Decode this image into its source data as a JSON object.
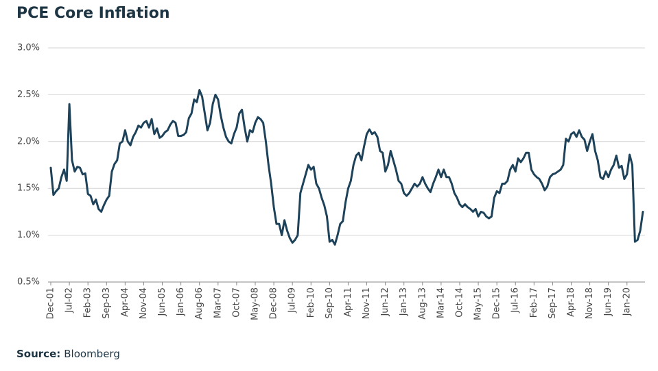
{
  "chart_data": {
    "type": "line",
    "title": "PCE Core Inflation",
    "source_label": "Source:",
    "source": "Bloomberg",
    "ylim": [
      0.5,
      3.0
    ],
    "yticks": [
      {
        "value": 0.5,
        "label": "0.5%"
      },
      {
        "value": 1.0,
        "label": "1.0%"
      },
      {
        "value": 1.5,
        "label": "1.5%"
      },
      {
        "value": 2.0,
        "label": "2.0%"
      },
      {
        "value": 2.5,
        "label": "2.5%"
      },
      {
        "value": 3.0,
        "label": "3.0%"
      }
    ],
    "grid": true,
    "categories": [
      "Dec-01",
      null,
      null,
      null,
      null,
      null,
      null,
      "Jul-02",
      null,
      null,
      null,
      null,
      null,
      null,
      "Feb-03",
      null,
      null,
      null,
      null,
      null,
      null,
      "Sep-03",
      null,
      null,
      null,
      null,
      null,
      null,
      "Apr-04",
      null,
      null,
      null,
      null,
      null,
      null,
      "Nov-04",
      null,
      null,
      null,
      null,
      null,
      null,
      "Jun-05",
      null,
      null,
      null,
      null,
      null,
      null,
      "Jan-06",
      null,
      null,
      null,
      null,
      null,
      null,
      "Aug-06",
      null,
      null,
      null,
      null,
      null,
      null,
      "Mar-07",
      null,
      null,
      null,
      null,
      null,
      null,
      "Oct-07",
      null,
      null,
      null,
      null,
      null,
      null,
      "May-08",
      null,
      null,
      null,
      null,
      null,
      null,
      "Dec-08",
      null,
      null,
      null,
      null,
      null,
      null,
      "Jul-09",
      null,
      null,
      null,
      null,
      null,
      null,
      "Feb-10",
      null,
      null,
      null,
      null,
      null,
      null,
      "Sep-10",
      null,
      null,
      null,
      null,
      null,
      null,
      "Apr-11",
      null,
      null,
      null,
      null,
      null,
      null,
      "Nov-11",
      null,
      null,
      null,
      null,
      null,
      null,
      "Jun-12",
      null,
      null,
      null,
      null,
      null,
      null,
      "Jan-13",
      null,
      null,
      null,
      null,
      null,
      null,
      "Aug-13",
      null,
      null,
      null,
      null,
      null,
      null,
      "Mar-14",
      null,
      null,
      null,
      null,
      null,
      null,
      "Oct-14",
      null,
      null,
      null,
      null,
      null,
      null,
      "May-15",
      null,
      null,
      null,
      null,
      null,
      null,
      "Dec-15",
      null,
      null,
      null,
      null,
      null,
      null,
      "Jul-16",
      null,
      null,
      null,
      null,
      null,
      null,
      "Feb-17",
      null,
      null,
      null,
      null,
      null,
      null,
      "Sep-17",
      null,
      null,
      null,
      null,
      null,
      null,
      "Apr-18",
      null,
      null,
      null,
      null,
      null,
      null,
      "Nov-18",
      null,
      null,
      null,
      null,
      null,
      null,
      "Jun-19",
      null,
      null,
      null,
      null,
      null,
      null,
      "Jan-20",
      null,
      null,
      null,
      null,
      null,
      null
    ],
    "series": [
      {
        "name": "PCE Core Inflation",
        "color": "#1d4259",
        "values": [
          1.72,
          1.43,
          1.47,
          1.5,
          1.62,
          1.7,
          1.58,
          2.4,
          1.8,
          1.68,
          1.73,
          1.72,
          1.65,
          1.66,
          1.44,
          1.42,
          1.33,
          1.38,
          1.28,
          1.25,
          1.32,
          1.38,
          1.42,
          1.68,
          1.76,
          1.8,
          1.98,
          2.0,
          2.12,
          2.0,
          1.96,
          2.05,
          2.1,
          2.17,
          2.15,
          2.2,
          2.22,
          2.15,
          2.24,
          2.08,
          2.14,
          2.04,
          2.06,
          2.1,
          2.12,
          2.18,
          2.22,
          2.2,
          2.06,
          2.06,
          2.07,
          2.1,
          2.25,
          2.3,
          2.45,
          2.42,
          2.55,
          2.48,
          2.3,
          2.12,
          2.2,
          2.4,
          2.5,
          2.45,
          2.28,
          2.15,
          2.05,
          2.0,
          1.98,
          2.08,
          2.15,
          2.3,
          2.34,
          2.15,
          2.0,
          2.12,
          2.1,
          2.2,
          2.26,
          2.24,
          2.2,
          2.0,
          1.75,
          1.55,
          1.3,
          1.12,
          1.12,
          1.0,
          1.16,
          1.05,
          0.97,
          0.92,
          0.95,
          1.0,
          1.45,
          1.55,
          1.65,
          1.75,
          1.7,
          1.73,
          1.55,
          1.5,
          1.4,
          1.32,
          1.2,
          0.93,
          0.95,
          0.9,
          1.0,
          1.12,
          1.15,
          1.35,
          1.5,
          1.58,
          1.75,
          1.85,
          1.88,
          1.8,
          1.95,
          2.08,
          2.13,
          2.08,
          2.1,
          2.05,
          1.9,
          1.88,
          1.68,
          1.75,
          1.9,
          1.8,
          1.7,
          1.58,
          1.55,
          1.45,
          1.42,
          1.45,
          1.5,
          1.55,
          1.52,
          1.55,
          1.62,
          1.55,
          1.5,
          1.46,
          1.55,
          1.62,
          1.7,
          1.62,
          1.7,
          1.62,
          1.62,
          1.55,
          1.45,
          1.4,
          1.33,
          1.3,
          1.33,
          1.3,
          1.28,
          1.25,
          1.28,
          1.2,
          1.25,
          1.24,
          1.2,
          1.18,
          1.2,
          1.4,
          1.47,
          1.45,
          1.55,
          1.55,
          1.58,
          1.7,
          1.75,
          1.68,
          1.82,
          1.78,
          1.82,
          1.88,
          1.88,
          1.7,
          1.65,
          1.62,
          1.6,
          1.55,
          1.48,
          1.52,
          1.62,
          1.65,
          1.66,
          1.68,
          1.7,
          1.75,
          2.03,
          2.0,
          2.08,
          2.1,
          2.05,
          2.12,
          2.05,
          2.02,
          1.9,
          2.0,
          2.08,
          1.9,
          1.8,
          1.62,
          1.6,
          1.68,
          1.62,
          1.7,
          1.75,
          1.85,
          1.72,
          1.74,
          1.6,
          1.65,
          1.86,
          1.75,
          0.93,
          0.95,
          1.05,
          1.25
        ]
      }
    ]
  }
}
